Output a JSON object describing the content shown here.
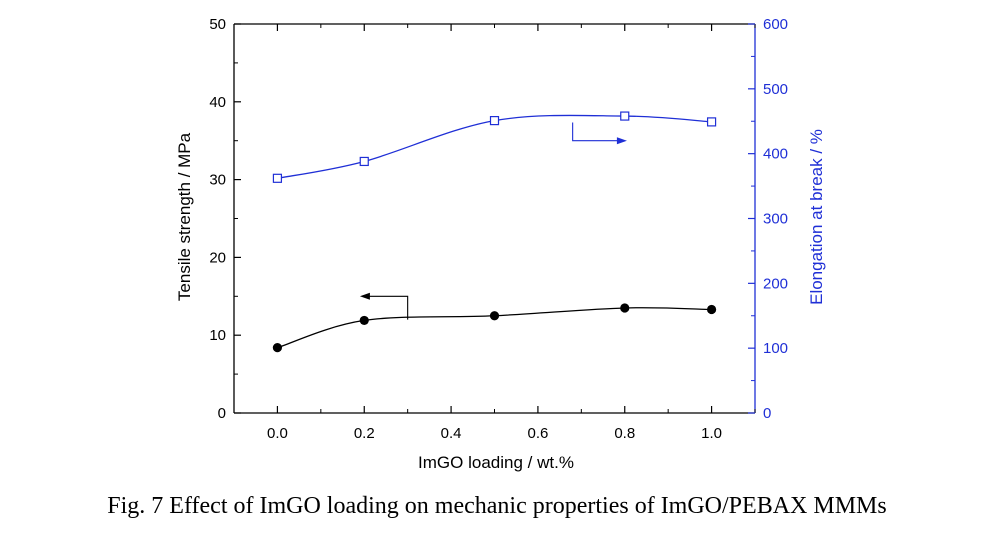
{
  "caption": "Fig. 7 Effect of ImGO loading on mechanic properties of ImGO/PEBAX MMMs",
  "chart_data": {
    "type": "line",
    "xlabel": "ImGO loading / wt.%",
    "ylabel_left": "Tensile strength / MPa",
    "ylabel_right": "Elongation at break / %",
    "xlim": [
      -0.1,
      1.1
    ],
    "ylim_left": [
      0,
      50
    ],
    "ylim_right": [
      0,
      600
    ],
    "x_ticks": [
      "0.0",
      "0.2",
      "0.4",
      "0.6",
      "0.8",
      "1.0"
    ],
    "y_left_ticks": [
      "0",
      "10",
      "20",
      "30",
      "40",
      "50"
    ],
    "y_right_ticks": [
      "0",
      "100",
      "200",
      "300",
      "400",
      "500",
      "600"
    ],
    "grid": false,
    "series": [
      {
        "axis": "left",
        "marker": "filled-circle",
        "color": "#000000",
        "x": [
          0.0,
          0.2,
          0.5,
          0.8,
          1.0
        ],
        "y": [
          8.4,
          11.9,
          12.5,
          13.5,
          13.3
        ]
      },
      {
        "axis": "right",
        "marker": "open-square",
        "color": "#1f2fd6",
        "x": [
          0.0,
          0.2,
          0.5,
          0.8,
          1.0
        ],
        "y": [
          362,
          388,
          451,
          458,
          449
        ]
      }
    ]
  }
}
